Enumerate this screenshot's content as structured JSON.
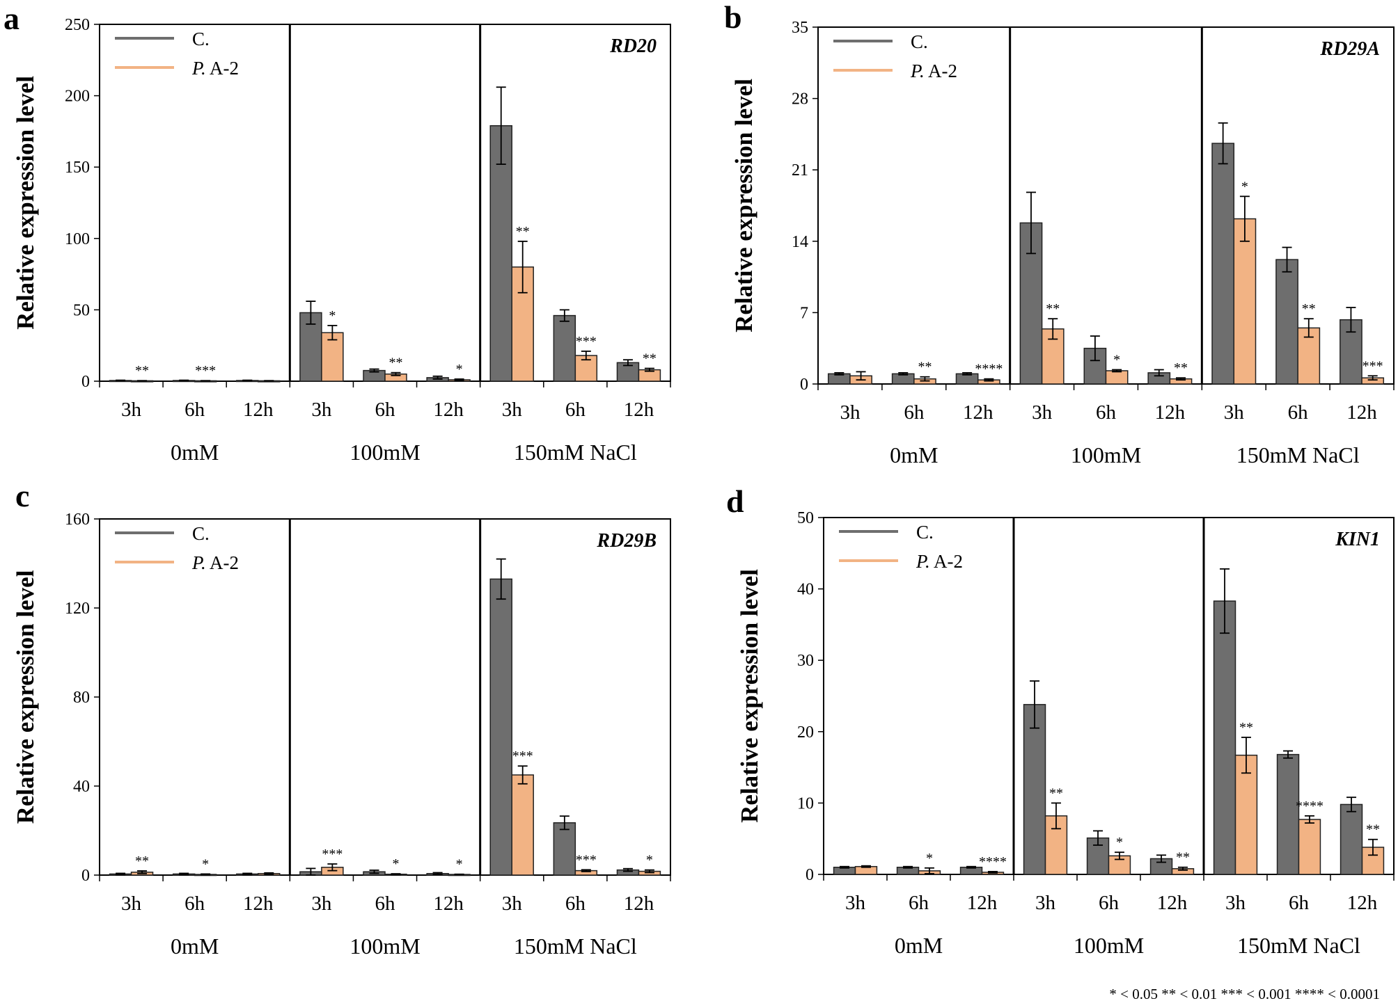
{
  "footnote": "* < 0.05 ** < 0.01 *** < 0.001 **** < 0.0001",
  "colors": {
    "control": "#6e6e6e",
    "treatment": "#f2b384",
    "axis": "#000000"
  },
  "chart_data": [
    {
      "panel": "a",
      "type": "bar",
      "title": "RD20",
      "ylabel": "Relative expression level",
      "ylim": [
        0,
        250
      ],
      "yticks": [
        "0",
        "50",
        "100",
        "150",
        "200",
        "250"
      ],
      "categories": [
        "3h",
        "6h",
        "12h",
        "3h",
        "6h",
        "12h",
        "3h",
        "6h",
        "12h"
      ],
      "groups": [
        "0mM",
        "100mM",
        "150mM NaCl"
      ],
      "legend": [
        {
          "prefix": "",
          "label": "C."
        },
        {
          "prefix": "P.",
          "label": " A-2"
        }
      ],
      "series": [
        {
          "name": "C.",
          "values": [
            0.5,
            0.5,
            0.5,
            48,
            7.5,
            2.5,
            179,
            46,
            13
          ],
          "errors": [
            0.2,
            0.2,
            0.2,
            8,
            1,
            1,
            27,
            4,
            2
          ]
        },
        {
          "name": "P. A-2",
          "values": [
            0.3,
            0.3,
            0.3,
            34,
            5,
            1,
            80,
            18,
            8
          ],
          "errors": [
            0.1,
            0.1,
            0.1,
            5,
            1,
            0.5,
            18,
            3,
            1
          ]
        }
      ],
      "significance": [
        "**",
        "***",
        "",
        "*",
        "**",
        "*",
        "**",
        "***",
        "**"
      ]
    },
    {
      "panel": "b",
      "type": "bar",
      "title": "RD29A",
      "ylabel": "Relative expression level",
      "ylim": [
        0,
        35
      ],
      "yticks": [
        "0",
        "7",
        "14",
        "21",
        "28",
        "35"
      ],
      "categories": [
        "3h",
        "6h",
        "12h",
        "3h",
        "6h",
        "12h",
        "3h",
        "6h",
        "12h"
      ],
      "groups": [
        "0mM",
        "100mM",
        "150mM NaCl"
      ],
      "legend": [
        {
          "prefix": "",
          "label": "C."
        },
        {
          "prefix": "P.",
          "label": " A-2"
        }
      ],
      "series": [
        {
          "name": "C.",
          "values": [
            1,
            1,
            1,
            15.8,
            3.5,
            1.1,
            23.6,
            12.2,
            6.3
          ],
          "errors": [
            0.1,
            0.1,
            0.1,
            3,
            1.2,
            0.3,
            2,
            1.2,
            1.2
          ]
        },
        {
          "name": "P. A-2",
          "values": [
            0.8,
            0.5,
            0.4,
            5.4,
            1.3,
            0.5,
            16.2,
            5.5,
            0.6
          ],
          "errors": [
            0.4,
            0.2,
            0.1,
            1,
            0.1,
            0.1,
            2.2,
            0.9,
            0.2
          ]
        }
      ],
      "significance": [
        "",
        "**",
        "****",
        "**",
        "*",
        "**",
        "*",
        "**",
        "***"
      ]
    },
    {
      "panel": "c",
      "type": "bar",
      "title": "RD29B",
      "ylabel": "Relative expression level",
      "ylim": [
        0,
        160
      ],
      "yticks": [
        "0",
        "40",
        "80",
        "120",
        "160"
      ],
      "categories": [
        "3h",
        "6h",
        "12h",
        "3h",
        "6h",
        "12h",
        "3h",
        "6h",
        "12h"
      ],
      "groups": [
        "0mM",
        "100mM",
        "150mM NaCl"
      ],
      "legend": [
        {
          "prefix": "",
          "label": "C."
        },
        {
          "prefix": "P.",
          "label": " A-2"
        }
      ],
      "series": [
        {
          "name": "C.",
          "values": [
            0.5,
            0.5,
            0.5,
            1.5,
            1.5,
            0.7,
            133,
            23.5,
            2.3
          ],
          "errors": [
            0.3,
            0.3,
            0.3,
            1.5,
            0.7,
            0.4,
            9,
            3,
            0.6
          ]
        },
        {
          "name": "P. A-2",
          "values": [
            1.3,
            0.3,
            0.7,
            3.5,
            0.4,
            0.3,
            45,
            2,
            1.7
          ],
          "errors": [
            0.6,
            0.2,
            0.3,
            1.5,
            0.2,
            0.1,
            4,
            0.4,
            0.6
          ]
        }
      ],
      "significance": [
        "**",
        "*",
        "",
        "***",
        "*",
        "*",
        "***",
        "***",
        "*"
      ]
    },
    {
      "panel": "d",
      "type": "bar",
      "title": "KIN1",
      "ylabel": "Relative expression level",
      "ylim": [
        0,
        50
      ],
      "yticks": [
        "0",
        "10",
        "20",
        "30",
        "40",
        "50"
      ],
      "categories": [
        "3h",
        "6h",
        "12h",
        "3h",
        "6h",
        "12h",
        "3h",
        "6h",
        "12h"
      ],
      "groups": [
        "0mM",
        "100mM",
        "150mM NaCl"
      ],
      "legend": [
        {
          "prefix": "",
          "label": "C."
        },
        {
          "prefix": "P.",
          "label": " A-2"
        }
      ],
      "series": [
        {
          "name": "C.",
          "values": [
            1,
            1,
            1,
            23.8,
            5.1,
            2.2,
            38.3,
            16.8,
            9.8
          ],
          "errors": [
            0.1,
            0.1,
            0.1,
            3.3,
            1,
            0.5,
            4.5,
            0.5,
            1
          ]
        },
        {
          "name": "P. A-2",
          "values": [
            1.1,
            0.5,
            0.3,
            8.2,
            2.6,
            0.8,
            16.7,
            7.7,
            3.8
          ],
          "errors": [
            0.1,
            0.4,
            0.1,
            1.8,
            0.5,
            0.2,
            2.5,
            0.5,
            1.1
          ]
        }
      ],
      "significance": [
        "",
        "*",
        "****",
        "**",
        "*",
        "**",
        "**",
        "****",
        "**"
      ]
    }
  ]
}
